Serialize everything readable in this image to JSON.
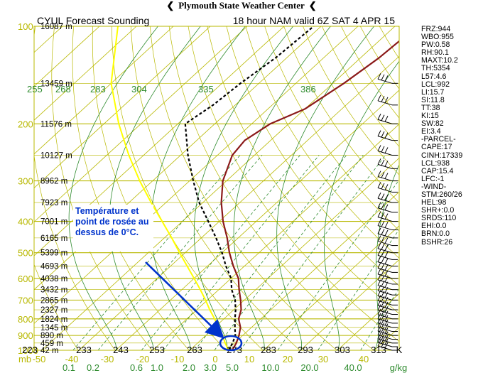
{
  "header": {
    "site": "Plymouth State Weather Center",
    "arrow_left": "❮",
    "arrow_right": "❮"
  },
  "chart_data": {
    "type": "line",
    "title": "CYUL Forecast Sounding",
    "subtitle": "18 hour NAM valid 6Z SAT 4 APR 15",
    "pressure_unit": "mb",
    "mixing_ratio_unit": "g/kg",
    "kelvin_unit": "K",
    "pressure_levels": [
      100,
      200,
      300,
      400,
      500,
      600,
      700,
      800,
      900,
      1000
    ],
    "pressure_labels": [
      "100",
      "200",
      "300",
      "400",
      "500",
      "600",
      "700",
      "800",
      "900",
      "1000"
    ],
    "height_labels": [
      {
        "p": 100,
        "label": "16087 m"
      },
      {
        "p": 150,
        "label": "13459 m"
      },
      {
        "p": 200,
        "label": "11576 m"
      },
      {
        "p": 250,
        "label": "10127 m"
      },
      {
        "p": 300,
        "label": "8962 m"
      },
      {
        "p": 350,
        "label": "7923 m"
      },
      {
        "p": 400,
        "label": "7001 m"
      },
      {
        "p": 450,
        "label": "6165 m"
      },
      {
        "p": 500,
        "label": "5399 m"
      },
      {
        "p": 550,
        "label": "4693 m"
      },
      {
        "p": 600,
        "label": "4038 m"
      },
      {
        "p": 650,
        "label": "3432 m"
      },
      {
        "p": 700,
        "label": "2865 m"
      },
      {
        "p": 750,
        "label": "2327 m"
      },
      {
        "p": 800,
        "label": "1824 m"
      },
      {
        "p": 850,
        "label": "1345 m"
      },
      {
        "p": 900,
        "label": "890 m"
      },
      {
        "p": 950,
        "label": "459 m"
      },
      {
        "p": 1000,
        "label": "42 m"
      }
    ],
    "temperature_ticks": [
      "-50",
      "-40",
      "-30",
      "-20",
      "-10",
      "0",
      "10",
      "20",
      "30",
      "40"
    ],
    "kelvin_ticks": [
      "223",
      "233",
      "243",
      "253",
      "263",
      "273",
      "283",
      "293",
      "303",
      "313"
    ],
    "mixing_ratio_ticks": [
      "0.1",
      "0.2",
      "0.6",
      "1.0",
      "2.0",
      "3.0",
      "5.0",
      "10.0",
      "20.0",
      "40.0"
    ],
    "theta_e_labels": [
      "255",
      "268",
      "283",
      "304",
      "335",
      "386"
    ],
    "series": [
      {
        "name": "temperature",
        "color": "#8b1a1a",
        "points": [
          [
            1000,
            1.5
          ],
          [
            975,
            1
          ],
          [
            950,
            0.5
          ],
          [
            900,
            -1
          ],
          [
            850,
            -3
          ],
          [
            800,
            -6
          ],
          [
            750,
            -8
          ],
          [
            700,
            -11
          ],
          [
            650,
            -14.5
          ],
          [
            600,
            -18
          ],
          [
            550,
            -23
          ],
          [
            500,
            -28
          ],
          [
            450,
            -33
          ],
          [
            400,
            -39
          ],
          [
            350,
            -45
          ],
          [
            300,
            -51
          ],
          [
            250,
            -56
          ],
          [
            225,
            -57
          ],
          [
            200,
            -55
          ],
          [
            180,
            -50
          ],
          [
            150,
            -47
          ],
          [
            125,
            -45
          ],
          [
            100,
            -44
          ]
        ]
      },
      {
        "name": "dewpoint",
        "color": "#000000",
        "points": [
          [
            1000,
            0.5
          ],
          [
            975,
            0
          ],
          [
            950,
            -0.5
          ],
          [
            900,
            -2
          ],
          [
            850,
            -4.5
          ],
          [
            800,
            -7
          ],
          [
            750,
            -9.5
          ],
          [
            700,
            -12.5
          ],
          [
            650,
            -16.5
          ],
          [
            600,
            -20
          ],
          [
            550,
            -25
          ],
          [
            500,
            -30
          ],
          [
            450,
            -36
          ],
          [
            400,
            -43
          ],
          [
            350,
            -51
          ],
          [
            300,
            -59
          ],
          [
            250,
            -68
          ],
          [
            200,
            -78
          ],
          [
            175,
            -76
          ],
          [
            150,
            -75
          ],
          [
            125,
            -73
          ],
          [
            100,
            -72
          ]
        ]
      },
      {
        "name": "parcel",
        "color": "#ffff00",
        "points": [
          [
            1000,
            0.5
          ],
          [
            950,
            -2.5
          ],
          [
            900,
            -5.5
          ],
          [
            850,
            -9
          ],
          [
            800,
            -12.5
          ],
          [
            750,
            -16.5
          ],
          [
            700,
            -20.5
          ],
          [
            650,
            -25
          ],
          [
            600,
            -30
          ],
          [
            550,
            -35.5
          ],
          [
            500,
            -41.5
          ],
          [
            450,
            -48
          ],
          [
            400,
            -55.5
          ],
          [
            350,
            -64
          ],
          [
            300,
            -73.5
          ],
          [
            250,
            -84
          ],
          [
            200,
            -96
          ],
          [
            150,
            -110
          ],
          [
            100,
            -125
          ]
        ]
      }
    ],
    "indices": [
      "FRZ:944",
      "WBO:955",
      "PW:0.58",
      "RH:90.1",
      "MAXT:10.2",
      "TH:5354",
      "L57:4.6",
      "LCL:992",
      "LI:15.7",
      "SI:11.8",
      "TT:38",
      "KI:15",
      "SW:82",
      "EI:3.4",
      "-PARCEL-",
      "CAPE:17",
      "CINH:17339",
      "LCL:938",
      "CAP:15.4",
      "LFC:-1",
      "-WIND-",
      "STM:260/26",
      "HEL:98",
      "SHR+:0.0",
      "SRDS:110",
      "EHI:0.0",
      "BRN:0.0",
      "BSHR:26"
    ]
  },
  "annotation": {
    "text": "Température et point de rosée au dessus de 0°C.",
    "color": "#0033cc"
  },
  "colors": {
    "isobar": "#b8b800",
    "isotherm": "#b8b800",
    "dry_adiabat": "#b8b800",
    "moist_adiabat": "#2e8b2e",
    "mixing_ratio": "#2e8b2e",
    "axis_label": "#b8b800",
    "mixing_label": "#2e8b2e"
  }
}
